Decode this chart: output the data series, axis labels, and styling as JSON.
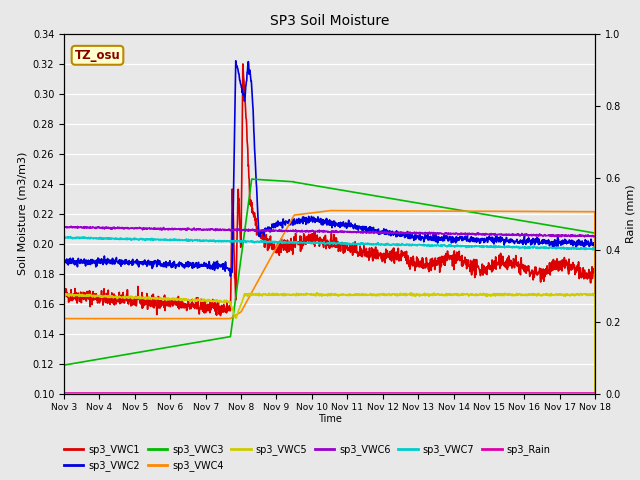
{
  "title": "SP3 Soil Moisture",
  "xlabel": "Time",
  "ylabel_left": "Soil Moisture (m3/m3)",
  "ylabel_right": "Rain (mm)",
  "ylim_left": [
    0.1,
    0.34
  ],
  "ylim_right": [
    0.0,
    1.0
  ],
  "bg_color": "#e8e8e8",
  "annotation_label": "TZ_osu",
  "annotation_bg": "#ffffcc",
  "annotation_border": "#bb8800",
  "annotation_text_color": "#880000",
  "xtick_labels": [
    "Nov 3",
    "Nov 4",
    "Nov 5",
    "Nov 6",
    "Nov 7",
    "Nov 8",
    "Nov 9",
    "Nov 10",
    "Nov 11",
    "Nov 12",
    "Nov 13",
    "Nov 14",
    "Nov 15",
    "Nov 16",
    "Nov 17",
    "Nov 18"
  ],
  "series_order": [
    "sp3_VWC1",
    "sp3_VWC2",
    "sp3_VWC3",
    "sp3_VWC4",
    "sp3_VWC5",
    "sp3_VWC6",
    "sp3_VWC7",
    "sp3_Rain"
  ],
  "legend_row1": [
    "sp3_VWC1",
    "sp3_VWC2",
    "sp3_VWC3",
    "sp3_VWC4",
    "sp3_VWC5",
    "sp3_VWC6"
  ],
  "legend_row2": [
    "sp3_VWC7",
    "sp3_Rain"
  ],
  "series": {
    "sp3_VWC1": {
      "color": "#dd0000",
      "lw": 1.2
    },
    "sp3_VWC2": {
      "color": "#0000dd",
      "lw": 1.2
    },
    "sp3_VWC3": {
      "color": "#00bb00",
      "lw": 1.2
    },
    "sp3_VWC4": {
      "color": "#ff8800",
      "lw": 1.2
    },
    "sp3_VWC5": {
      "color": "#cccc00",
      "lw": 1.2
    },
    "sp3_VWC6": {
      "color": "#9900cc",
      "lw": 1.2
    },
    "sp3_VWC7": {
      "color": "#00cccc",
      "lw": 1.2
    },
    "sp3_Rain": {
      "color": "#dd00aa",
      "lw": 1.0
    }
  }
}
